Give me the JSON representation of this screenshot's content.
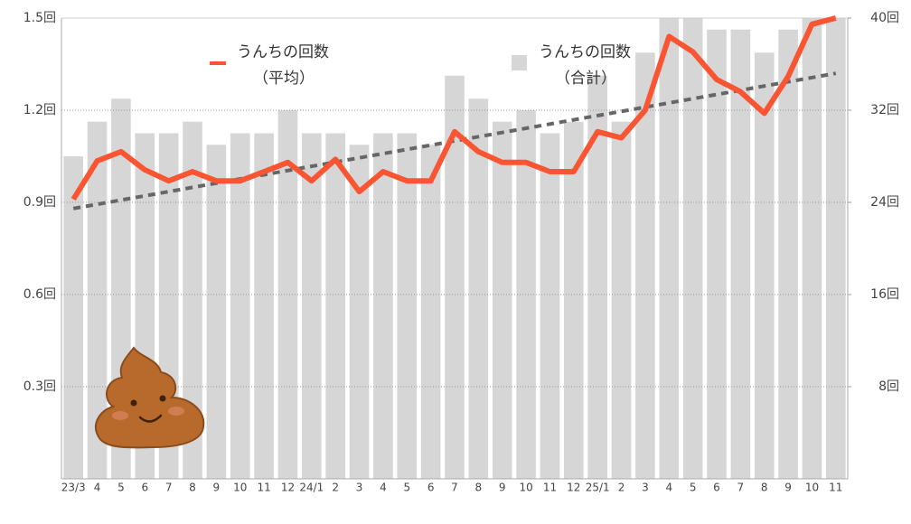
{
  "chart_data": {
    "type": "bar-line",
    "categories": [
      "23/3",
      "4",
      "5",
      "6",
      "7",
      "8",
      "9",
      "10",
      "11",
      "12",
      "24/1",
      "2",
      "3",
      "4",
      "5",
      "6",
      "7",
      "8",
      "9",
      "10",
      "11",
      "12",
      "25/1",
      "2",
      "3",
      "4",
      "5",
      "6",
      "7",
      "8",
      "9",
      "10",
      "11"
    ],
    "series": [
      {
        "name": "うんちの回数",
        "subname": "（合計）",
        "type": "bar",
        "axis": "y2",
        "color": "#d6d6d6",
        "values": [
          28,
          31,
          33,
          30,
          30,
          31,
          29,
          30,
          30,
          32,
          30,
          30,
          29,
          30,
          30,
          29,
          35,
          33,
          31,
          32,
          30,
          31,
          35,
          31,
          37,
          40,
          40,
          39,
          39,
          37,
          39,
          40,
          40
        ]
      },
      {
        "name": "うんちの回数",
        "subname": "（平均）",
        "type": "line",
        "axis": "y",
        "color": "#fa5532",
        "values": [
          0.91,
          1.035,
          1.065,
          1.006,
          0.97,
          1.0,
          0.97,
          0.97,
          1.0,
          1.03,
          0.97,
          1.04,
          0.935,
          1.0,
          0.97,
          0.97,
          1.13,
          1.065,
          1.03,
          1.03,
          1.0,
          1.0,
          1.13,
          1.11,
          1.2,
          1.44,
          1.39,
          1.3,
          1.26,
          1.19,
          1.31,
          1.48,
          1.5
        ]
      }
    ],
    "trendline": {
      "color": "#666666",
      "values": [
        0.88,
        1.32
      ]
    },
    "ylim": [
      0,
      1.5
    ],
    "yticks": [
      {
        "value": 0.3,
        "label": "0.3回"
      },
      {
        "value": 0.6,
        "label": "0.6回"
      },
      {
        "value": 0.9,
        "label": "0.9回"
      },
      {
        "value": 1.2,
        "label": "1.2回"
      },
      {
        "value": 1.5,
        "label": "1.5回"
      }
    ],
    "y2lim": [
      0,
      40
    ],
    "y2ticks": [
      {
        "value": 8,
        "label": "8回"
      },
      {
        "value": 16,
        "label": "16回"
      },
      {
        "value": 24,
        "label": "24回"
      },
      {
        "value": 32,
        "label": "32回"
      },
      {
        "value": 40,
        "label": "40回"
      }
    ],
    "grid": true
  }
}
